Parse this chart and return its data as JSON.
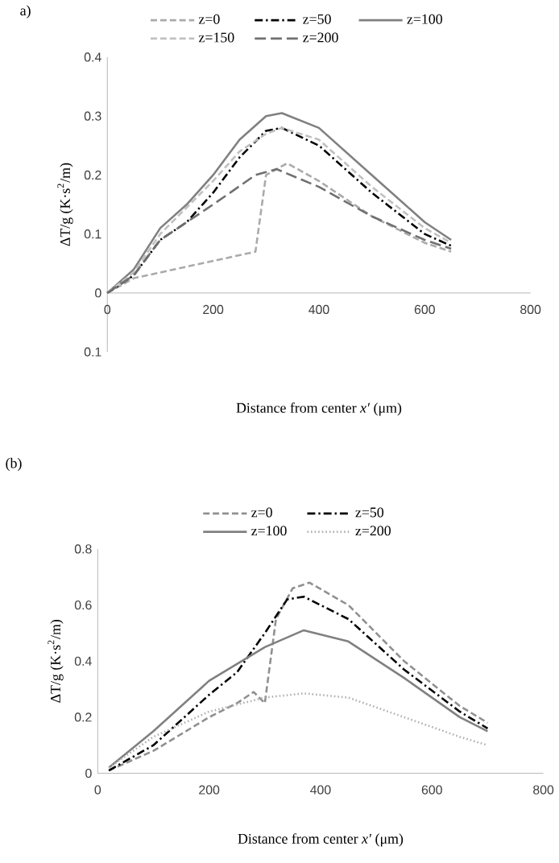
{
  "chart_data": [
    {
      "type": "line",
      "title": "a)",
      "xlabel": "Distance from center *x′* (μm)",
      "ylabel": "ΔT/g (K·s$^{2}$/m)",
      "xlim": [
        0,
        800
      ],
      "ylim": [
        -0.1,
        0.4
      ],
      "xticks": [
        0,
        200,
        400,
        600,
        800
      ],
      "yticks": [
        {
          "value": -0.1,
          "label": "0.1"
        },
        0,
        0.1,
        0.2,
        0.3,
        0.4
      ],
      "grid": false,
      "legend": "top",
      "series": [
        {
          "name": "z=0",
          "color": "#aaaaaa",
          "line_style": "dashed",
          "x": [
            0,
            50,
            280,
            300,
            340,
            400,
            500,
            600,
            650
          ],
          "values": [
            0,
            0.025,
            0.07,
            0.2,
            0.22,
            0.19,
            0.13,
            0.085,
            0.07
          ]
        },
        {
          "name": "z=50",
          "color": "#000000",
          "line_style": "dashdot",
          "x": [
            0,
            50,
            100,
            150,
            200,
            250,
            300,
            330,
            400,
            500,
            600,
            650
          ],
          "values": [
            0,
            0.03,
            0.09,
            0.12,
            0.17,
            0.23,
            0.275,
            0.28,
            0.25,
            0.17,
            0.1,
            0.08
          ]
        },
        {
          "name": "z=100",
          "color": "#808080",
          "line_style": "solid",
          "x": [
            0,
            50,
            100,
            150,
            200,
            250,
            300,
            330,
            400,
            500,
            600,
            650
          ],
          "values": [
            0,
            0.04,
            0.11,
            0.15,
            0.2,
            0.26,
            0.3,
            0.305,
            0.28,
            0.2,
            0.12,
            0.09
          ]
        },
        {
          "name": "z=150",
          "color": "#c0c0c0",
          "line_style": "dashed",
          "x": [
            0,
            50,
            100,
            200,
            250,
            300,
            330,
            400,
            500,
            600,
            650
          ],
          "values": [
            0,
            0.035,
            0.1,
            0.19,
            0.24,
            0.27,
            0.28,
            0.26,
            0.18,
            0.11,
            0.085
          ]
        },
        {
          "name": "z=200",
          "color": "#707070",
          "line_style": "longdashed",
          "x": [
            0,
            50,
            100,
            200,
            280,
            320,
            400,
            500,
            600,
            650
          ],
          "values": [
            0,
            0.03,
            0.09,
            0.15,
            0.2,
            0.21,
            0.18,
            0.13,
            0.09,
            0.075
          ]
        }
      ]
    },
    {
      "type": "line",
      "title": "(b)",
      "xlabel": "Distance from center *x′* (μm)",
      "ylabel": "ΔT/g (K·s$^{2}$/m)",
      "xlim": [
        0,
        800
      ],
      "ylim": [
        0,
        0.8
      ],
      "xticks": [
        0,
        200,
        400,
        600,
        800
      ],
      "yticks": [
        0,
        0.2,
        0.4,
        0.6,
        0.8
      ],
      "grid": false,
      "legend": "top",
      "series": [
        {
          "name": "z=0",
          "color": "#909090",
          "line_style": "dashed",
          "x": [
            20,
            100,
            200,
            250,
            280,
            300,
            320,
            350,
            380,
            450,
            550,
            650,
            700
          ],
          "values": [
            0.01,
            0.08,
            0.2,
            0.25,
            0.29,
            0.25,
            0.55,
            0.66,
            0.68,
            0.6,
            0.4,
            0.24,
            0.18
          ]
        },
        {
          "name": "z=50",
          "color": "#000000",
          "line_style": "dashdot",
          "x": [
            20,
            100,
            200,
            250,
            300,
            340,
            370,
            450,
            550,
            650,
            700
          ],
          "values": [
            0.01,
            0.1,
            0.28,
            0.36,
            0.5,
            0.62,
            0.63,
            0.55,
            0.37,
            0.22,
            0.16
          ]
        },
        {
          "name": "z=100",
          "color": "#808080",
          "line_style": "solid",
          "x": [
            20,
            100,
            200,
            300,
            370,
            450,
            550,
            650,
            700
          ],
          "values": [
            0.02,
            0.15,
            0.33,
            0.45,
            0.51,
            0.47,
            0.34,
            0.2,
            0.15
          ]
        },
        {
          "name": "z=200",
          "color": "#b0b0b0",
          "line_style": "dotted",
          "x": [
            20,
            100,
            200,
            300,
            370,
            450,
            550,
            650,
            700
          ],
          "values": [
            0.02,
            0.13,
            0.22,
            0.27,
            0.285,
            0.27,
            0.2,
            0.13,
            0.1
          ]
        }
      ]
    }
  ]
}
